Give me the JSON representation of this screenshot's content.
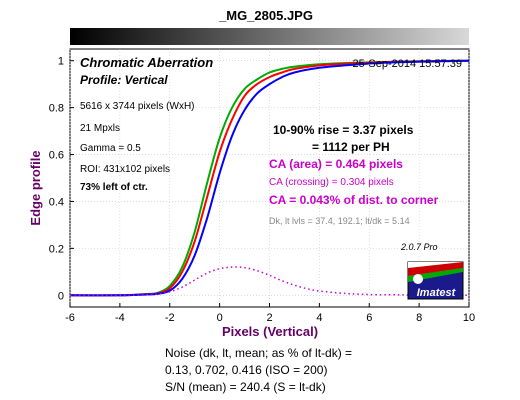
{
  "header": {
    "filename": "_MG_2805.JPG"
  },
  "plot": {
    "title": "Chromatic Aberration",
    "subtitle": "Profile: Vertical",
    "timestamp": "25-Sep-2014 15:57:39",
    "info_lines": [
      "5616 x 3744 pixels (WxH)",
      "21 Mpxls",
      "Gamma = 0.5",
      "ROI: 431x102 pixels"
    ],
    "info_bold": "73% left of ctr.",
    "rise_line1": "10-90% rise = 3.37 pixels",
    "rise_line2": "= 1112 per PH",
    "ca_area": "CA (area) = 0.464 pixels",
    "ca_crossing": "CA (crossing) = 0.304 pixels",
    "ca_corner": "CA = 0.043% of dist. to corner",
    "levels": "Dk, lt lvls = 37.4, 192.1;  lt/dk = 5.14",
    "version": "2.0.7  Pro",
    "logo_text": "Imatest"
  },
  "footer": {
    "line1": "Noise (dk, lt, mean; as % of lt-dk) =",
    "line2": "0.13,  0.702,  0.416  (ISO =  200)",
    "line3": "S/N (mean) = 240.4  (S = lt-dk)"
  },
  "colors": {
    "red": "#ff0000",
    "green": "#00aa00",
    "blue": "#0000ff",
    "magenta": "#cc00cc",
    "label_purple": "#660066"
  },
  "chart_data": {
    "type": "line",
    "xlabel": "Pixels (Vertical)",
    "ylabel": "Edge profile",
    "xlim": [
      -6,
      10
    ],
    "ylim": [
      -0.05,
      1.05
    ],
    "xticks": [
      -6,
      -4,
      -2,
      0,
      2,
      4,
      6,
      8,
      10
    ],
    "yticks": [
      0,
      0.2,
      0.4,
      0.6,
      0.8,
      1
    ],
    "grid": true,
    "series": [
      {
        "color": "green",
        "style": "solid",
        "x": [
          -6,
          -4,
          -3,
          -2.5,
          -2,
          -1.5,
          -1,
          -0.5,
          0,
          0.5,
          1,
          1.5,
          2,
          2.5,
          3,
          4,
          5,
          6,
          7,
          8,
          10
        ],
        "y": [
          0,
          0,
          0.005,
          0.01,
          0.04,
          0.12,
          0.27,
          0.48,
          0.67,
          0.8,
          0.88,
          0.92,
          0.95,
          0.965,
          0.975,
          0.985,
          0.99,
          0.993,
          0.996,
          0.998,
          1.0
        ]
      },
      {
        "color": "red",
        "style": "solid",
        "x": [
          -6,
          -4,
          -3,
          -2.5,
          -2,
          -1.5,
          -1,
          -0.5,
          0,
          0.5,
          1,
          1.5,
          2,
          2.5,
          3,
          4,
          5,
          6,
          7,
          8,
          10
        ],
        "y": [
          0,
          0,
          0.004,
          0.008,
          0.03,
          0.1,
          0.23,
          0.42,
          0.61,
          0.75,
          0.85,
          0.9,
          0.93,
          0.95,
          0.965,
          0.98,
          0.987,
          0.992,
          0.995,
          0.997,
          1.0
        ]
      },
      {
        "color": "blue",
        "style": "solid",
        "x": [
          -6,
          -4,
          -3,
          -2.5,
          -2,
          -1.5,
          -1,
          -0.5,
          0,
          0.5,
          1,
          1.5,
          2,
          2.5,
          3,
          4,
          5,
          6,
          7,
          8,
          10
        ],
        "y": [
          0,
          0,
          0.003,
          0.006,
          0.02,
          0.07,
          0.17,
          0.33,
          0.52,
          0.68,
          0.79,
          0.86,
          0.9,
          0.93,
          0.95,
          0.97,
          0.98,
          0.988,
          0.993,
          0.996,
          1.0
        ]
      },
      {
        "color": "magenta",
        "style": "dotted",
        "x": [
          -6,
          -4,
          -3,
          -2.5,
          -2,
          -1.5,
          -1,
          -0.5,
          0,
          0.5,
          1,
          1.5,
          2,
          2.5,
          3,
          3.5,
          4,
          5,
          6,
          7,
          8,
          10
        ],
        "y": [
          0,
          0,
          0.002,
          0.005,
          0.015,
          0.035,
          0.065,
          0.095,
          0.113,
          0.12,
          0.118,
          0.105,
          0.085,
          0.062,
          0.043,
          0.028,
          0.018,
          0.008,
          0.003,
          0.002,
          0.001,
          0
        ]
      }
    ]
  }
}
